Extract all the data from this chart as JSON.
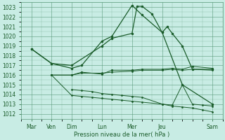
{
  "xlabel": "Pression niveau de la mer( hPa )",
  "background_color": "#c8ece4",
  "grid_color": "#5a9a7a",
  "line_color": "#1a5c2a",
  "ylim": [
    1011.5,
    1023.5
  ],
  "yticks": [
    1012,
    1013,
    1014,
    1015,
    1016,
    1017,
    1018,
    1019,
    1020,
    1021,
    1022,
    1023
  ],
  "xtick_labels": [
    "Mar",
    "Ven",
    "Dim",
    "Lun",
    "Mer",
    "Jeu",
    "Sam"
  ],
  "xtick_positions": [
    0,
    2,
    4,
    7,
    10,
    13,
    18
  ],
  "xlim": [
    -0.5,
    18.5
  ],
  "line1_x": [
    0,
    2,
    4,
    7,
    8,
    10,
    10.5,
    11,
    12,
    13,
    13.5,
    14,
    15,
    16,
    18
  ],
  "line1_y": [
    1018.7,
    1017.2,
    1017.0,
    1019.0,
    1019.8,
    1020.3,
    1023.1,
    1023.1,
    1022.3,
    1020.4,
    1021.0,
    1020.3,
    1019.0,
    1016.6,
    1016.6
  ],
  "line2_x": [
    2,
    4,
    5,
    7,
    8,
    10,
    11,
    13,
    14,
    15,
    16,
    18
  ],
  "line2_y": [
    1016.0,
    1016.0,
    1016.3,
    1016.1,
    1016.5,
    1016.5,
    1016.6,
    1016.6,
    1016.7,
    1016.6,
    1016.9,
    1016.7
  ],
  "line3_x": [
    2,
    4,
    5,
    7,
    8,
    10,
    11,
    13,
    14,
    15,
    16,
    18
  ],
  "line3_y": [
    1016.0,
    1016.0,
    1016.2,
    1016.2,
    1016.3,
    1016.4,
    1016.5,
    1016.5,
    1016.6,
    1016.5,
    1016.6,
    1016.5
  ],
  "line4_x": [
    2,
    4,
    5,
    6,
    7,
    8,
    9,
    10,
    11,
    13,
    14,
    15,
    16,
    17,
    18
  ],
  "line4_y": [
    1016.0,
    1013.9,
    1013.8,
    1013.7,
    1013.6,
    1013.5,
    1013.4,
    1013.3,
    1013.2,
    1013.0,
    1012.8,
    1012.7,
    1012.6,
    1012.4,
    1012.2
  ],
  "line5_x": [
    4,
    5,
    6,
    7,
    8,
    9,
    10,
    11,
    13,
    14,
    15,
    16,
    17,
    18
  ],
  "line5_y": [
    1014.5,
    1014.4,
    1014.3,
    1014.1,
    1014.0,
    1013.9,
    1013.8,
    1013.7,
    1013.0,
    1012.9,
    1015.0,
    1013.0,
    1012.9,
    1012.8
  ],
  "line6_x": [
    0,
    2,
    4,
    5,
    7,
    8,
    10,
    11,
    13,
    15,
    18
  ],
  "line6_y": [
    1018.7,
    1017.2,
    1016.7,
    1017.0,
    1019.5,
    1020.0,
    1023.2,
    1022.2,
    1020.4,
    1015.0,
    1013.0
  ]
}
